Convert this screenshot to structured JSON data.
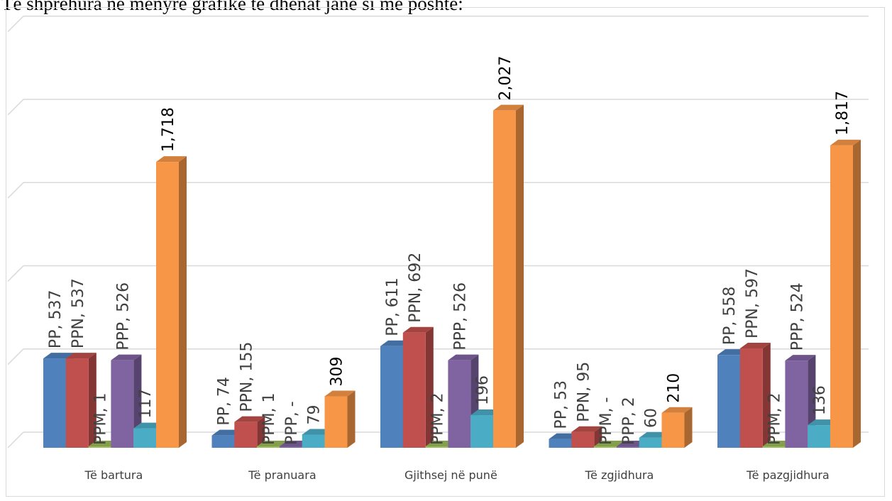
{
  "page": {
    "caption": "Të shprehura në mënyrë grafike të dhënat janë si më poshtë:"
  },
  "chart_data": {
    "type": "bar",
    "style": "3d-clustered-column",
    "title": "",
    "xlabel": "",
    "ylabel": "",
    "ylim": [
      0,
      2500
    ],
    "grid": true,
    "legend": "none",
    "categories": [
      "Të bartura",
      "Të pranuara",
      "Gjithsej në punë",
      "Të zgjidhura",
      "Të pazgjidhura"
    ],
    "series": [
      {
        "name": "PP",
        "color": "#4f81bd",
        "values": [
          537,
          74,
          611,
          53,
          558
        ],
        "labels": [
          "PP, 537",
          "PP, 74",
          "PP, 611",
          "PP, 53",
          "PP, 558"
        ]
      },
      {
        "name": "PPN",
        "color": "#c0504d",
        "values": [
          537,
          155,
          692,
          95,
          597
        ],
        "labels": [
          "PPN, 537",
          "PPN, 155",
          "PPN, 692",
          "PPN, 95",
          "PPN, 597"
        ]
      },
      {
        "name": "PPM",
        "color": "#9bbb59",
        "values": [
          1,
          1,
          2,
          0,
          2
        ],
        "labels": [
          "PPM, 1",
          "PPM, 1",
          "PPM, 2",
          "PPM, -",
          "PPM, 2"
        ]
      },
      {
        "name": "PPP",
        "color": "#8064a2",
        "values": [
          526,
          0,
          526,
          2,
          524
        ],
        "labels": [
          "PPP, 526",
          "PPP, -",
          "PPP, 526",
          "PPP, 2",
          "PPP, 524"
        ]
      },
      {
        "name": "",
        "color": "#4bacc6",
        "values": [
          117,
          79,
          196,
          60,
          136
        ],
        "labels": [
          "117",
          "79",
          "196",
          "60",
          "136"
        ]
      },
      {
        "name": "",
        "color": "#f79646",
        "values": [
          1718,
          309,
          2027,
          210,
          1817
        ],
        "labels": [
          "1,718",
          "309",
          "2,027",
          "210",
          "1,817"
        ]
      }
    ]
  }
}
